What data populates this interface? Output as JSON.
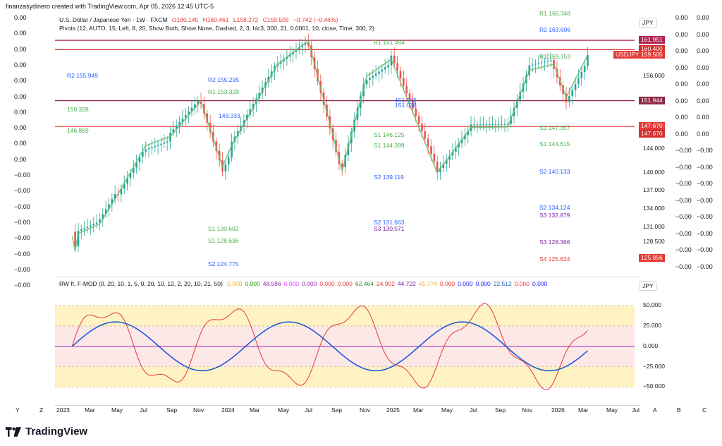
{
  "header": {
    "author_line": "finanzasydinero created with TradingView.com, Apr 05, 2026 12:45 UTC-5"
  },
  "legend_main": {
    "symbol": "U.S. Dollar / Japanese Yen · 1W · FXCM",
    "open": "O160.145",
    "high": "H160.461",
    "low": "L158.272",
    "close": "C159.505",
    "change": "−0.742 (−0.46%)",
    "pivots": "Pivots (12, AUTO, 15, Left, 8, 20, Show Both, Show None, Dashed, 2, 3, hlc3, 300, 21, 0.0001, 10, close, Time, 300, 2)"
  },
  "legend_osc": {
    "name": "RW ft. F-MOD (0, 20, 10, 1, 5, 0, 20, 10, 12, 2, 20, 10, 21, 50)",
    "values": [
      {
        "v": "0.000",
        "color": "#f5a623"
      },
      {
        "v": "0.000",
        "color": "#1faa00"
      },
      {
        "v": "48.586",
        "color": "#9c27b0"
      },
      {
        "v": "0.000",
        "color": "#e040fb"
      },
      {
        "v": "0.000",
        "color": "#9c27b0"
      },
      {
        "v": "0.000",
        "color": "#e53935"
      },
      {
        "v": "0.000",
        "color": "#e53935"
      },
      {
        "v": "62.464",
        "color": "#388e3c"
      },
      {
        "v": "24.902",
        "color": "#e53935"
      },
      {
        "v": "44.722",
        "color": "#7b1fa2"
      },
      {
        "v": "41.774",
        "color": "#f5a623"
      },
      {
        "v": "0.000",
        "color": "#e53935"
      },
      {
        "v": "0.000",
        "color": "#1a1aff"
      },
      {
        "v": "0.000",
        "color": "#1a1aff"
      },
      {
        "v": "22.512",
        "color": "#1565c0"
      },
      {
        "v": "0.000",
        "color": "#e53935"
      },
      {
        "v": "0.000",
        "color": "#1a1aff"
      }
    ]
  },
  "currency_label": "JPY",
  "currency_label_osc": "JPY",
  "left_scale": [
    "0.00",
    "0.00",
    "0.00",
    "0.00",
    "0.00",
    "0.00",
    "0.00",
    "0.00",
    "0.00",
    "0.00",
    "−0.00",
    "−0.00",
    "−0.00",
    "−0.00",
    "−0.00",
    "−0.00",
    "−0.00",
    "−0.00"
  ],
  "right_outer_a": [
    "0.00",
    "0.00",
    "0.00",
    "0.00",
    "0.00",
    "0.00",
    "0.00",
    "0.00",
    "−0.00",
    "−0.00",
    "−0.00",
    "−0.00",
    "−0.00",
    "−0.00",
    "−0.00",
    "−0.00"
  ],
  "right_outer_b": [
    "0.00",
    "0.00",
    "0.00",
    "0.00",
    "0.00",
    "0.00",
    "0.00",
    "0.00",
    "−0.00",
    "−0.00",
    "−0.00",
    "−0.00",
    "−0.00",
    "−0.00",
    "−0.00",
    "−0.00"
  ],
  "price_badges": [
    {
      "text": "161.951",
      "color": "#b2244f"
    },
    {
      "text": "160.400",
      "color": "#d32f2f"
    },
    {
      "text": "USDJPY",
      "color": "#e53935"
    },
    {
      "text": "159.505",
      "color": "#e53935"
    },
    {
      "text": "151.944",
      "color": "#8e2948"
    },
    {
      "text": "147.670",
      "color": "#e53935"
    },
    {
      "text": "147.670",
      "color": "#d32f2f"
    },
    {
      "text": "125.856",
      "color": "#e53935"
    }
  ],
  "price_labels": [
    "156.000",
    "144.000",
    "140.000",
    "137.000",
    "134.000",
    "131.000",
    "128.500"
  ],
  "osc_scale": [
    "50.000",
    "25.000",
    "0.000",
    "−25.000",
    "−50.000"
  ],
  "pivot_labels": [
    {
      "t": "R2",
      "v": "155.949",
      "c": "#2962ff"
    },
    {
      "t": "R2",
      "v": "155.295",
      "c": "#2962ff"
    },
    {
      "t": "R1",
      "v": "153.329",
      "c": "#4caf50"
    },
    {
      "t": "R1",
      "v": "161.494",
      "c": "#4caf50"
    },
    {
      "t": "R1",
      "v": "166.348",
      "c": "#4caf50"
    },
    {
      "t": "R2",
      "v": "163.606",
      "c": "#2962ff"
    },
    {
      "t": "R1",
      "v": "159.153",
      "c": "#4caf50"
    },
    {
      "t": "",
      "v": "150.328",
      "c": "#4caf50"
    },
    {
      "t": "",
      "v": "146.869",
      "c": "#4caf50"
    },
    {
      "t": "S1",
      "v": "146.125",
      "c": "#4caf50"
    },
    {
      "t": "S1",
      "v": "144.399",
      "c": "#4caf50"
    },
    {
      "t": "S1",
      "v": "147.357",
      "c": "#4caf50"
    },
    {
      "t": "S1",
      "v": "144.615",
      "c": "#4caf50"
    },
    {
      "t": "S2",
      "v": "139.119",
      "c": "#2962ff"
    },
    {
      "t": "S2",
      "v": "140.133",
      "c": "#2962ff"
    },
    {
      "t": "S2",
      "v": "134.124",
      "c": "#2962ff"
    },
    {
      "t": "S3",
      "v": "132.879",
      "c": "#7b1fa2"
    },
    {
      "t": "S2",
      "v": "131.663",
      "c": "#2962ff"
    },
    {
      "t": "S3",
      "v": "130.571",
      "c": "#7b1fa2"
    },
    {
      "t": "S1",
      "v": "130.602",
      "c": "#4caf50"
    },
    {
      "t": "S1",
      "v": "128.636",
      "c": "#4caf50"
    },
    {
      "t": "S3",
      "v": "128.366",
      "c": "#7b1fa2"
    },
    {
      "t": "S4",
      "v": "125.624",
      "c": "#e53935"
    },
    {
      "t": "S2",
      "v": "124.775",
      "c": "#2962ff"
    },
    {
      "t": "",
      "v": "149.333",
      "c": "#2962ff"
    },
    {
      "t": "",
      "v": "151.038",
      "c": "#2962ff"
    },
    {
      "t": "",
      "v": "151.946",
      "c": "#2962ff"
    }
  ],
  "x_axis": [
    "Y",
    "Z",
    "2023",
    "Mar",
    "May",
    "Jul",
    "Sep",
    "Nov",
    "2024",
    "Mar",
    "May",
    "Jul",
    "Sep",
    "Nov",
    "2025",
    "Mar",
    "May",
    "Jul",
    "Sep",
    "Nov",
    "2026",
    "Mar",
    "May",
    "Jul",
    "A",
    "B",
    "C"
  ],
  "brand": "TradingView",
  "chart_data": {
    "type": "candlestick",
    "title": "U.S. Dollar / Japanese Yen · 1W · FXCM",
    "ylabel": "JPY",
    "ylim": [
      123,
      167
    ],
    "x_range": [
      "2023-01",
      "2026-07"
    ],
    "close_path": [
      {
        "x": "2023-01-09",
        "y": 129.5
      },
      {
        "x": "2023-01-16",
        "y": 127.0
      },
      {
        "x": "2023-01-23",
        "y": 129.9
      },
      {
        "x": "2023-03-13",
        "y": 131.5
      },
      {
        "x": "2023-04-24",
        "y": 136.5
      },
      {
        "x": "2023-06-26",
        "y": 144.5
      },
      {
        "x": "2023-08-21",
        "y": 146.0
      },
      {
        "x": "2023-10-30",
        "y": 151.9
      },
      {
        "x": "2023-12-18",
        "y": 141.0
      },
      {
        "x": "2024-01-08",
        "y": 144.5
      },
      {
        "x": "2024-04-22",
        "y": 158.0
      },
      {
        "x": "2024-07-01",
        "y": 161.9
      },
      {
        "x": "2024-09-16",
        "y": 140.3
      },
      {
        "x": "2024-11-11",
        "y": 156.0
      },
      {
        "x": "2025-01-06",
        "y": 158.8
      },
      {
        "x": "2025-04-21",
        "y": 140.0
      },
      {
        "x": "2025-07-07",
        "y": 147.5
      },
      {
        "x": "2025-09-29",
        "y": 147.6
      },
      {
        "x": "2025-11-17",
        "y": 157.0
      },
      {
        "x": "2026-01-12",
        "y": 158.0
      },
      {
        "x": "2026-02-09",
        "y": 152.5
      },
      {
        "x": "2026-03-30",
        "y": 159.505
      }
    ],
    "last": {
      "open": 160.145,
      "high": 160.461,
      "low": 158.272,
      "close": 159.505,
      "change": -0.742,
      "change_pct": -0.46
    },
    "horizontal_levels": [
      161.951,
      160.4,
      151.944,
      147.67
    ],
    "oscillator": {
      "ylim": [
        -60,
        70
      ],
      "bands": [
        50,
        25,
        0,
        -25,
        -50
      ]
    }
  }
}
